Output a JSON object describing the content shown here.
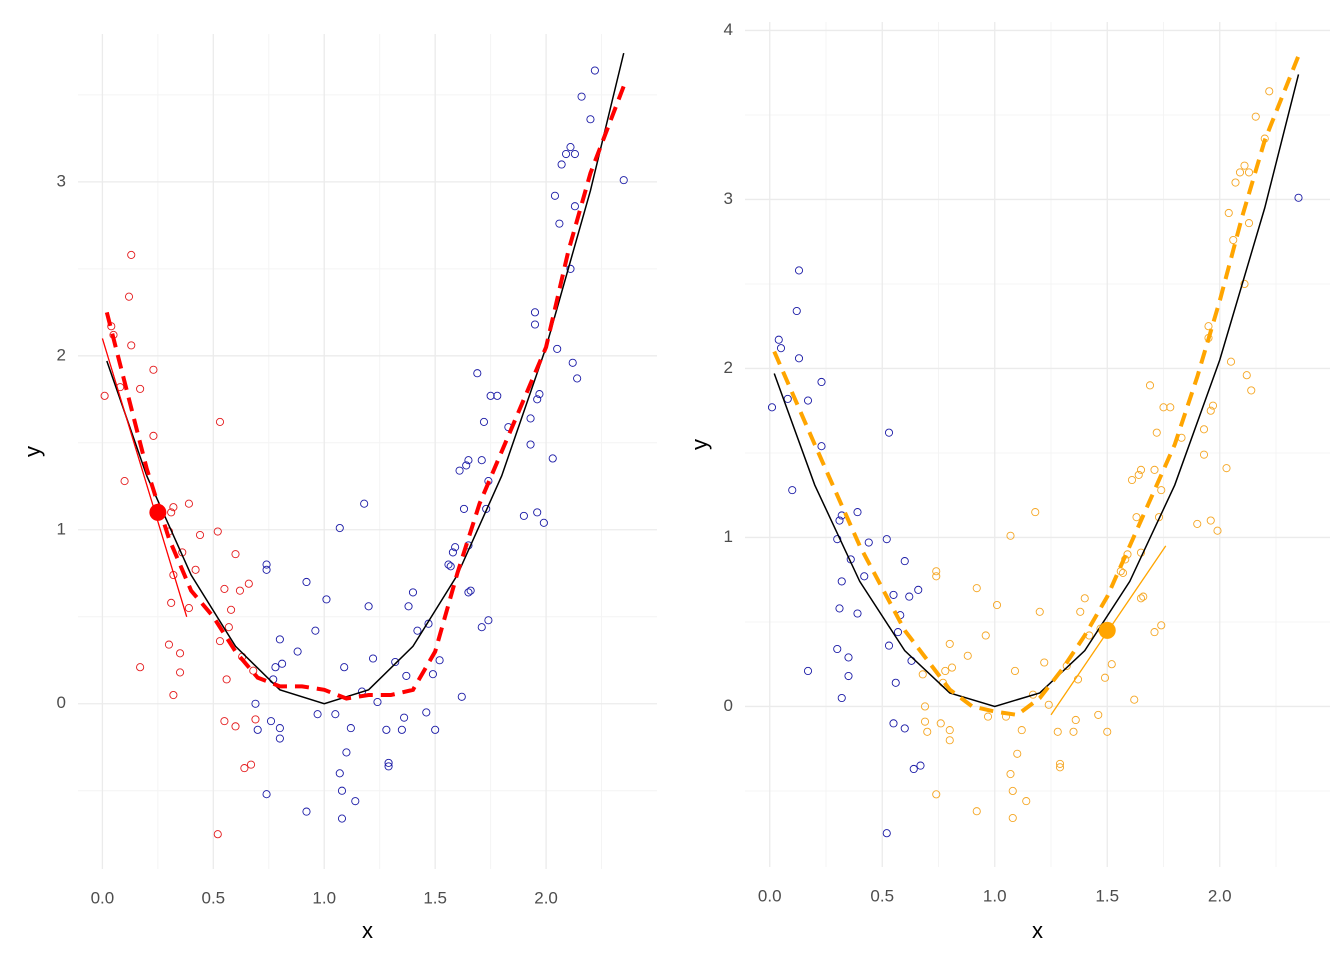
{
  "chart_data": [
    {
      "type": "scatter",
      "xlabel": "x",
      "ylabel": "y",
      "xlim": [
        -0.11,
        2.5
      ],
      "ylim": [
        -0.95,
        3.85
      ],
      "xticks": [
        {
          "value": 0,
          "label": "0.0"
        },
        {
          "value": 0.5,
          "label": "0.5"
        },
        {
          "value": 1,
          "label": "1.0"
        },
        {
          "value": 1.5,
          "label": "1.5"
        },
        {
          "value": 2,
          "label": "2.0"
        }
      ],
      "yticks": [
        0,
        1,
        2,
        3
      ],
      "grid": true,
      "series": [
        {
          "kind": "points",
          "color": "#e41a1c",
          "x": [
            0.01,
            0.04,
            0.05,
            0.08,
            0.1,
            0.12,
            0.13,
            0.13,
            0.17,
            0.17,
            0.23,
            0.23,
            0.3,
            0.3,
            0.31,
            0.32,
            0.31,
            0.32,
            0.32,
            0.35,
            0.35,
            0.36,
            0.39,
            0.39,
            0.42,
            0.44,
            0.52,
            0.52,
            0.53,
            0.53,
            0.55,
            0.55,
            0.56,
            0.57,
            0.58,
            0.6,
            0.6,
            0.62,
            0.63,
            0.64,
            0.66,
            0.67,
            0.68,
            0.69
          ],
          "values": [
            1.77,
            2.17,
            2.12,
            1.82,
            1.28,
            2.34,
            2.58,
            2.06,
            1.81,
            0.21,
            1.92,
            1.54,
            0.99,
            0.34,
            1.1,
            1.13,
            0.58,
            0.74,
            0.05,
            0.29,
            0.18,
            0.87,
            1.15,
            0.55,
            0.77,
            0.97,
            0.99,
            -0.75,
            1.62,
            0.36,
            0.66,
            -0.1,
            0.14,
            0.44,
            0.54,
            0.86,
            -0.13,
            0.65,
            0.27,
            -0.37,
            0.69,
            -0.35,
            0.19,
            -0.09
          ]
        },
        {
          "kind": "points",
          "color": "#1a1aa6",
          "x": [
            0.69,
            0.7,
            0.74,
            0.74,
            0.74,
            0.76,
            0.77,
            0.78,
            0.8,
            0.8,
            0.8,
            0.81,
            0.88,
            0.92,
            0.92,
            0.96,
            0.97,
            1.01,
            1.05,
            1.07,
            1.07,
            1.08,
            1.08,
            1.09,
            1.1,
            1.12,
            1.14,
            1.17,
            1.18,
            1.2,
            1.22,
            1.24,
            1.28,
            1.29,
            1.29,
            1.32,
            1.35,
            1.36,
            1.37,
            1.38,
            1.4,
            1.42,
            1.46,
            1.47,
            1.49,
            1.5,
            1.52,
            1.56,
            1.57,
            1.58,
            1.59,
            1.61,
            1.62,
            1.63,
            1.64,
            1.65,
            1.65,
            1.65,
            1.66,
            1.69,
            1.71,
            1.71,
            1.72,
            1.73,
            1.74,
            1.74,
            1.75,
            1.78,
            1.83,
            1.9,
            1.93,
            1.93,
            1.95,
            1.95,
            1.96,
            1.96,
            1.97,
            1.99,
            2.03,
            2.04,
            2.05,
            2.06,
            2.07,
            2.09,
            2.11,
            2.13,
            2.13,
            2.12,
            2.14,
            2.11,
            2.16,
            2.2,
            2.22,
            2.35
          ],
          "values": [
            0.0,
            -0.15,
            0.8,
            0.77,
            -0.52,
            -0.1,
            0.14,
            0.21,
            0.37,
            -0.14,
            -0.2,
            0.23,
            0.3,
            0.7,
            -0.62,
            0.42,
            -0.06,
            0.6,
            -0.06,
            1.01,
            -0.4,
            -0.5,
            -0.66,
            0.21,
            -0.28,
            -0.14,
            -0.56,
            0.07,
            1.15,
            0.56,
            0.26,
            0.01,
            -0.15,
            -0.34,
            -0.36,
            0.24,
            -0.15,
            -0.08,
            0.16,
            0.56,
            0.64,
            0.42,
            -0.05,
            0.46,
            0.17,
            -0.15,
            0.25,
            0.8,
            0.79,
            0.87,
            0.9,
            1.34,
            0.04,
            1.12,
            1.37,
            1.4,
            0.64,
            0.91,
            0.65,
            1.9,
            1.4,
            0.44,
            1.62,
            1.12,
            1.28,
            0.48,
            1.77,
            1.77,
            1.59,
            1.08,
            1.64,
            1.49,
            2.18,
            2.25,
            1.75,
            1.1,
            1.78,
            1.04,
            1.41,
            2.92,
            2.04,
            2.76,
            3.1,
            3.16,
            3.2,
            3.16,
            2.86,
            1.96,
            1.87,
            2.5,
            3.49,
            3.36,
            3.64,
            3.01
          ]
        },
        {
          "kind": "line",
          "color": "#000000",
          "x": [
            0.02,
            0.2,
            0.4,
            0.6,
            0.8,
            1.0,
            1.2,
            1.4,
            1.6,
            1.8,
            2.0,
            2.2,
            2.35
          ],
          "values": [
            1.97,
            1.31,
            0.74,
            0.33,
            0.08,
            0,
            0.08,
            0.33,
            0.74,
            1.31,
            2.05,
            2.95,
            3.74
          ]
        },
        {
          "kind": "dashed",
          "color": "#ff0000",
          "x": [
            0.02,
            0.1,
            0.2,
            0.3,
            0.4,
            0.5,
            0.6,
            0.7,
            0.8,
            0.9,
            1.0,
            1.1,
            1.2,
            1.3,
            1.4,
            1.5,
            1.6,
            1.7,
            1.8,
            1.9,
            2.0,
            2.1,
            2.2,
            2.35
          ],
          "values": [
            2.25,
            1.85,
            1.35,
            0.95,
            0.65,
            0.5,
            0.3,
            0.15,
            0.1,
            0.1,
            0.08,
            0.03,
            0.05,
            0.05,
            0.08,
            0.3,
            0.75,
            1.15,
            1.45,
            1.75,
            2.05,
            2.6,
            3.05,
            3.55
          ]
        },
        {
          "kind": "tangent",
          "color": "#ff0000",
          "x": [
            0,
            0.38
          ],
          "values": [
            2.1,
            0.5
          ]
        },
        {
          "kind": "focus",
          "color": "#ff0000",
          "x": [
            0.25
          ],
          "values": [
            1.1
          ]
        }
      ]
    },
    {
      "type": "scatter",
      "xlabel": "x",
      "ylabel": "y",
      "xlim": [
        -0.11,
        2.49
      ],
      "ylim": [
        -0.95,
        4.05
      ],
      "xticks": [
        {
          "value": 0,
          "label": "0.0"
        },
        {
          "value": 0.5,
          "label": "0.5"
        },
        {
          "value": 1,
          "label": "1.0"
        },
        {
          "value": 1.5,
          "label": "1.5"
        },
        {
          "value": 2,
          "label": "2.0"
        }
      ],
      "yticks": [
        0,
        1,
        2,
        3,
        4
      ],
      "grid": true,
      "series": [
        {
          "kind": "points",
          "color": "#1a1aa6",
          "x": [
            0.01,
            0.04,
            0.05,
            0.08,
            0.1,
            0.12,
            0.13,
            0.13,
            0.17,
            0.17,
            0.23,
            0.23,
            0.3,
            0.3,
            0.31,
            0.32,
            0.31,
            0.32,
            0.32,
            0.35,
            0.35,
            0.36,
            0.39,
            0.39,
            0.42,
            0.44,
            0.52,
            0.52,
            0.53,
            0.53,
            0.55,
            0.55,
            0.56,
            0.57,
            0.58,
            0.6,
            0.6,
            0.62,
            0.63,
            0.64,
            0.66,
            0.67,
            2.35
          ],
          "values": [
            1.77,
            2.17,
            2.12,
            1.82,
            1.28,
            2.34,
            2.58,
            2.06,
            1.81,
            0.21,
            1.92,
            1.54,
            0.99,
            0.34,
            1.1,
            1.13,
            0.58,
            0.74,
            0.05,
            0.29,
            0.18,
            0.87,
            1.15,
            0.55,
            0.77,
            0.97,
            0.99,
            -0.75,
            1.62,
            0.36,
            0.66,
            -0.1,
            0.14,
            0.44,
            0.54,
            0.86,
            -0.13,
            0.65,
            0.27,
            -0.37,
            0.69,
            -0.35,
            3.01
          ]
        },
        {
          "kind": "points",
          "color": "#f5a623",
          "x": [
            0.68,
            0.69,
            0.69,
            0.7,
            0.74,
            0.74,
            0.74,
            0.76,
            0.77,
            0.78,
            0.8,
            0.8,
            0.8,
            0.81,
            0.88,
            0.92,
            0.92,
            0.96,
            0.97,
            1.01,
            1.05,
            1.07,
            1.07,
            1.08,
            1.08,
            1.09,
            1.1,
            1.12,
            1.14,
            1.17,
            1.18,
            1.2,
            1.22,
            1.24,
            1.28,
            1.29,
            1.29,
            1.32,
            1.35,
            1.36,
            1.37,
            1.38,
            1.4,
            1.42,
            1.46,
            1.47,
            1.49,
            1.5,
            1.52,
            1.56,
            1.57,
            1.58,
            1.59,
            1.61,
            1.62,
            1.63,
            1.64,
            1.65,
            1.65,
            1.65,
            1.66,
            1.69,
            1.71,
            1.71,
            1.72,
            1.73,
            1.74,
            1.74,
            1.75,
            1.78,
            1.83,
            1.9,
            1.93,
            1.93,
            1.95,
            1.95,
            1.96,
            1.96,
            1.97,
            1.99,
            2.03,
            2.04,
            2.05,
            2.06,
            2.07,
            2.09,
            2.11,
            2.13,
            2.13,
            2.12,
            2.14,
            2.11,
            2.16,
            2.2,
            2.22
          ],
          "values": [
            0.19,
            -0.09,
            0.0,
            -0.15,
            0.8,
            0.77,
            -0.52,
            -0.1,
            0.14,
            0.21,
            0.37,
            -0.14,
            -0.2,
            0.23,
            0.3,
            0.7,
            -0.62,
            0.42,
            -0.06,
            0.6,
            -0.06,
            1.01,
            -0.4,
            -0.5,
            -0.66,
            0.21,
            -0.28,
            -0.14,
            -0.56,
            0.07,
            1.15,
            0.56,
            0.26,
            0.01,
            -0.15,
            -0.34,
            -0.36,
            0.24,
            -0.15,
            -0.08,
            0.16,
            0.56,
            0.64,
            0.42,
            -0.05,
            0.46,
            0.17,
            -0.15,
            0.25,
            0.8,
            0.79,
            0.87,
            0.9,
            1.34,
            0.04,
            1.12,
            1.37,
            1.4,
            0.64,
            0.91,
            0.65,
            1.9,
            1.4,
            0.44,
            1.62,
            1.12,
            1.28,
            0.48,
            1.77,
            1.77,
            1.59,
            1.08,
            1.64,
            1.49,
            2.18,
            2.25,
            1.75,
            1.1,
            1.78,
            1.04,
            1.41,
            2.92,
            2.04,
            2.76,
            3.1,
            3.16,
            3.2,
            3.16,
            2.86,
            1.96,
            1.87,
            2.5,
            3.49,
            3.36,
            3.64
          ]
        },
        {
          "kind": "line",
          "color": "#000000",
          "x": [
            0.02,
            0.2,
            0.4,
            0.6,
            0.8,
            1.0,
            1.2,
            1.4,
            1.6,
            1.8,
            2.0,
            2.2,
            2.35
          ],
          "values": [
            1.97,
            1.31,
            0.74,
            0.33,
            0.08,
            0,
            0.08,
            0.33,
            0.74,
            1.31,
            2.05,
            2.95,
            3.74
          ]
        },
        {
          "kind": "dashed",
          "color": "#ffa500",
          "x": [
            0.02,
            0.2,
            0.4,
            0.6,
            0.8,
            0.9,
            1.0,
            1.1,
            1.2,
            1.3,
            1.4,
            1.5,
            1.6,
            1.7,
            1.8,
            1.9,
            2.0,
            2.1,
            2.2,
            2.35
          ],
          "values": [
            2.1,
            1.55,
            0.95,
            0.45,
            0.1,
            0.0,
            -0.03,
            -0.05,
            0.05,
            0.22,
            0.42,
            0.65,
            0.95,
            1.25,
            1.55,
            1.95,
            2.4,
            2.9,
            3.35,
            3.85
          ]
        },
        {
          "kind": "tangent",
          "color": "#ffa500",
          "x": [
            1.25,
            1.76
          ],
          "values": [
            -0.05,
            0.95
          ]
        },
        {
          "kind": "focus",
          "color": "#ffa500",
          "x": [
            1.5
          ],
          "values": [
            0.45
          ]
        }
      ]
    }
  ]
}
